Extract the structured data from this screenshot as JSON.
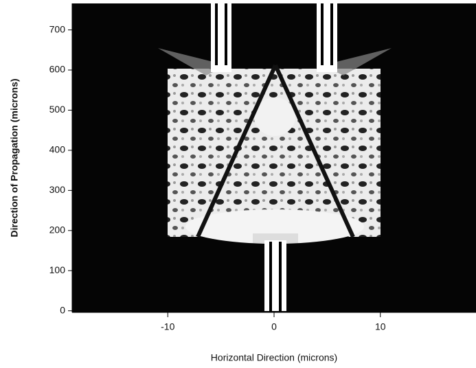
{
  "chart_data": {
    "type": "heatmap",
    "x_label": "Horizontal Direction (microns)",
    "y_label": "Direction of Propagation (microns)",
    "xlim": [
      -19,
      19
    ],
    "xticks": [
      -10,
      0,
      10
    ],
    "ylim": [
      -4,
      766
    ],
    "yticks": [
      0,
      100,
      200,
      300,
      400,
      500,
      600,
      700
    ]
  }
}
